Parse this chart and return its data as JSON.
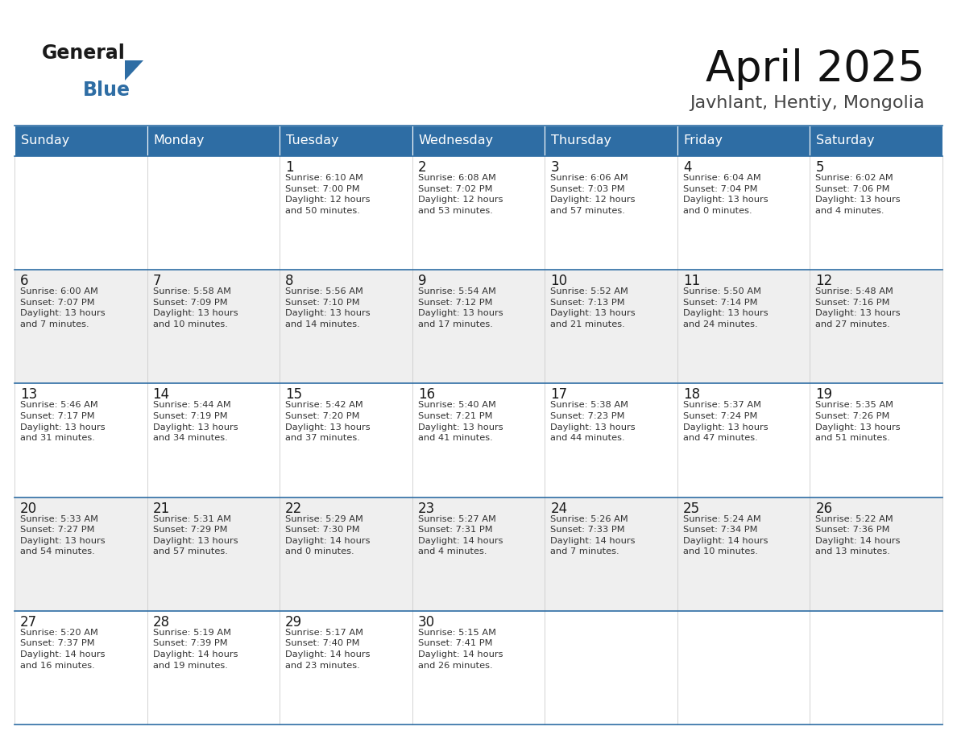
{
  "title": "April 2025",
  "subtitle": "Javhlant, Hentiy, Mongolia",
  "header_bg": "#2E6DA4",
  "header_text": "#FFFFFF",
  "row_bg_light": "#EFEFEF",
  "row_bg_white": "#FFFFFF",
  "border_color": "#2E6DA4",
  "day_number_color": "#1a1a1a",
  "cell_text_color": "#333333",
  "header_days": [
    "Sunday",
    "Monday",
    "Tuesday",
    "Wednesday",
    "Thursday",
    "Friday",
    "Saturday"
  ],
  "logo_general_color": "#1a1a1a",
  "logo_blue_color": "#2E6DA4",
  "calendar_data": [
    [
      "",
      "",
      "1\nSunrise: 6:10 AM\nSunset: 7:00 PM\nDaylight: 12 hours\nand 50 minutes.",
      "2\nSunrise: 6:08 AM\nSunset: 7:02 PM\nDaylight: 12 hours\nand 53 minutes.",
      "3\nSunrise: 6:06 AM\nSunset: 7:03 PM\nDaylight: 12 hours\nand 57 minutes.",
      "4\nSunrise: 6:04 AM\nSunset: 7:04 PM\nDaylight: 13 hours\nand 0 minutes.",
      "5\nSunrise: 6:02 AM\nSunset: 7:06 PM\nDaylight: 13 hours\nand 4 minutes."
    ],
    [
      "6\nSunrise: 6:00 AM\nSunset: 7:07 PM\nDaylight: 13 hours\nand 7 minutes.",
      "7\nSunrise: 5:58 AM\nSunset: 7:09 PM\nDaylight: 13 hours\nand 10 minutes.",
      "8\nSunrise: 5:56 AM\nSunset: 7:10 PM\nDaylight: 13 hours\nand 14 minutes.",
      "9\nSunrise: 5:54 AM\nSunset: 7:12 PM\nDaylight: 13 hours\nand 17 minutes.",
      "10\nSunrise: 5:52 AM\nSunset: 7:13 PM\nDaylight: 13 hours\nand 21 minutes.",
      "11\nSunrise: 5:50 AM\nSunset: 7:14 PM\nDaylight: 13 hours\nand 24 minutes.",
      "12\nSunrise: 5:48 AM\nSunset: 7:16 PM\nDaylight: 13 hours\nand 27 minutes."
    ],
    [
      "13\nSunrise: 5:46 AM\nSunset: 7:17 PM\nDaylight: 13 hours\nand 31 minutes.",
      "14\nSunrise: 5:44 AM\nSunset: 7:19 PM\nDaylight: 13 hours\nand 34 minutes.",
      "15\nSunrise: 5:42 AM\nSunset: 7:20 PM\nDaylight: 13 hours\nand 37 minutes.",
      "16\nSunrise: 5:40 AM\nSunset: 7:21 PM\nDaylight: 13 hours\nand 41 minutes.",
      "17\nSunrise: 5:38 AM\nSunset: 7:23 PM\nDaylight: 13 hours\nand 44 minutes.",
      "18\nSunrise: 5:37 AM\nSunset: 7:24 PM\nDaylight: 13 hours\nand 47 minutes.",
      "19\nSunrise: 5:35 AM\nSunset: 7:26 PM\nDaylight: 13 hours\nand 51 minutes."
    ],
    [
      "20\nSunrise: 5:33 AM\nSunset: 7:27 PM\nDaylight: 13 hours\nand 54 minutes.",
      "21\nSunrise: 5:31 AM\nSunset: 7:29 PM\nDaylight: 13 hours\nand 57 minutes.",
      "22\nSunrise: 5:29 AM\nSunset: 7:30 PM\nDaylight: 14 hours\nand 0 minutes.",
      "23\nSunrise: 5:27 AM\nSunset: 7:31 PM\nDaylight: 14 hours\nand 4 minutes.",
      "24\nSunrise: 5:26 AM\nSunset: 7:33 PM\nDaylight: 14 hours\nand 7 minutes.",
      "25\nSunrise: 5:24 AM\nSunset: 7:34 PM\nDaylight: 14 hours\nand 10 minutes.",
      "26\nSunrise: 5:22 AM\nSunset: 7:36 PM\nDaylight: 14 hours\nand 13 minutes."
    ],
    [
      "27\nSunrise: 5:20 AM\nSunset: 7:37 PM\nDaylight: 14 hours\nand 16 minutes.",
      "28\nSunrise: 5:19 AM\nSunset: 7:39 PM\nDaylight: 14 hours\nand 19 minutes.",
      "29\nSunrise: 5:17 AM\nSunset: 7:40 PM\nDaylight: 14 hours\nand 23 minutes.",
      "30\nSunrise: 5:15 AM\nSunset: 7:41 PM\nDaylight: 14 hours\nand 26 minutes.",
      "",
      "",
      ""
    ]
  ]
}
